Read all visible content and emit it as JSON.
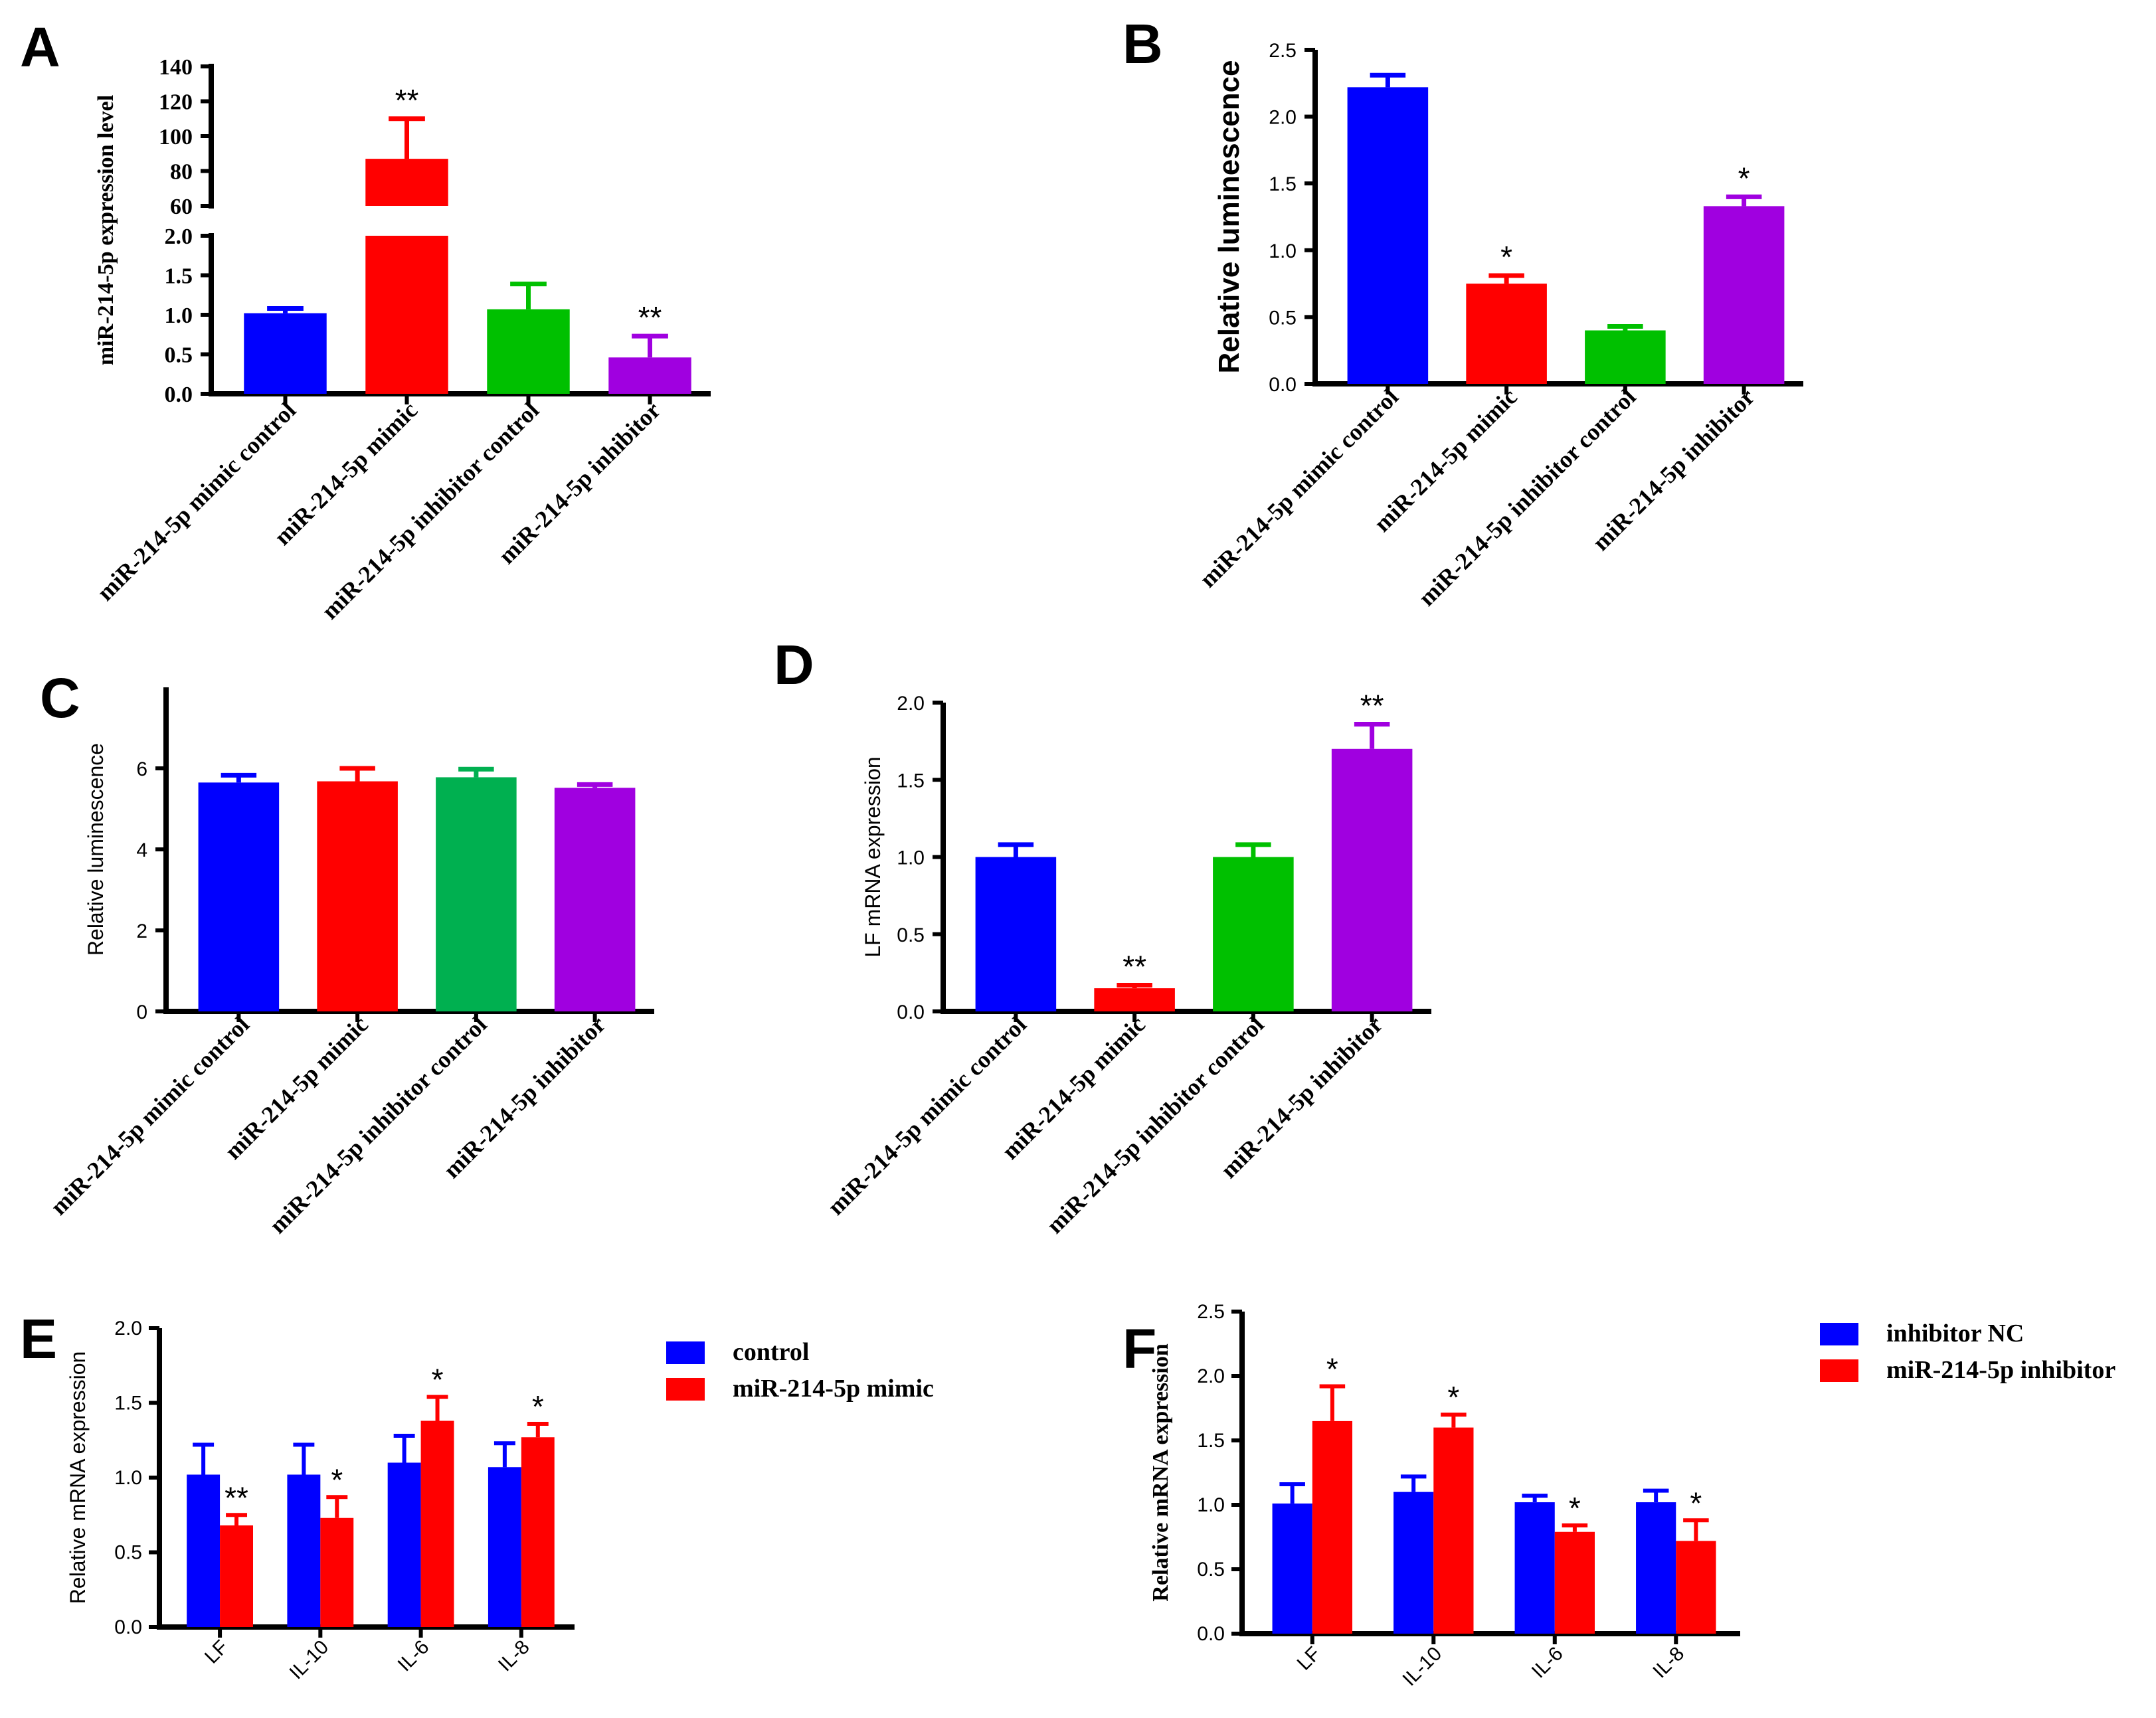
{
  "chart_data": [
    {
      "panel": "A",
      "type": "bar",
      "ylabel": "miR-214-5p expression level",
      "axis_break": {
        "lower_ylim": [
          0,
          2
        ],
        "upper_ylim": [
          60,
          140
        ]
      },
      "lower_ticks": [
        "0.0",
        "0.5",
        "1.0",
        "1.5",
        "2.0"
      ],
      "upper_ticks": [
        "60",
        "80",
        "100",
        "120",
        "140"
      ],
      "categories": [
        "miR-214-5p mimic control",
        "miR-214-5p mimic",
        "miR-214-5p inhibitor control",
        "miR-214-5p inhibitor"
      ],
      "values": [
        1.02,
        87,
        1.07,
        0.46
      ],
      "errors": [
        0.06,
        23,
        0.32,
        0.27
      ],
      "significance": [
        "",
        "**",
        "",
        "**"
      ],
      "colors": [
        "#0000ff",
        "#ff0000",
        "#00c000",
        "#a000e0"
      ]
    },
    {
      "panel": "B",
      "type": "bar",
      "ylabel": "Relative luminescence",
      "ylim": [
        0,
        2.5
      ],
      "ticks": [
        "0.0",
        "0.5",
        "1.0",
        "1.5",
        "2.0",
        "2.5"
      ],
      "categories": [
        "miR-214-5p mimic control",
        "miR-214-5p mimic",
        "miR-214-5p inhibitor control",
        "miR-214-5p inhibitor"
      ],
      "values": [
        2.22,
        0.75,
        0.4,
        1.33
      ],
      "errors": [
        0.09,
        0.06,
        0.03,
        0.07
      ],
      "significance": [
        "",
        "*",
        "",
        "*"
      ],
      "colors": [
        "#0000ff",
        "#ff0000",
        "#00c000",
        "#a000e0"
      ]
    },
    {
      "panel": "C",
      "type": "bar",
      "ylabel": "Relative luminescence",
      "ylim": [
        0,
        8
      ],
      "ticks": [
        "0",
        "2",
        "4",
        "6"
      ],
      "categories": [
        "miR-214-5p mimic control",
        "miR-214-5p mimic",
        "miR-214-5p inhibitor control",
        "miR-214-5p inhibitor"
      ],
      "values": [
        5.65,
        5.68,
        5.78,
        5.52
      ],
      "errors": [
        0.18,
        0.32,
        0.2,
        0.08
      ],
      "significance": [
        "",
        "",
        "",
        ""
      ],
      "colors": [
        "#0000ff",
        "#ff0000",
        "#00b050",
        "#a000e0"
      ]
    },
    {
      "panel": "D",
      "type": "bar",
      "ylabel": "LF mRNA expression",
      "ylim": [
        0,
        2.0
      ],
      "ticks": [
        "0.0",
        "0.5",
        "1.0",
        "1.5",
        "2.0"
      ],
      "categories": [
        "miR-214-5p mimic control",
        "miR-214-5p mimic",
        "miR-214-5p inhibitor control",
        "miR-214-5p inhibitor"
      ],
      "values": [
        1.0,
        0.15,
        1.0,
        1.7
      ],
      "errors": [
        0.08,
        0.02,
        0.08,
        0.16
      ],
      "significance": [
        "",
        "**",
        "",
        "**"
      ],
      "colors": [
        "#0000ff",
        "#ff0000",
        "#00c000",
        "#a000e0"
      ]
    },
    {
      "panel": "E",
      "type": "bar",
      "ylabel": "Relative mRNA expression",
      "ylim": [
        0,
        2.0
      ],
      "ticks": [
        "0.0",
        "0.5",
        "1.0",
        "1.5",
        "2.0"
      ],
      "categories": [
        "LF",
        "IL-10",
        "IL-6",
        "IL-8"
      ],
      "series": [
        {
          "name": "control",
          "color": "#0000ff",
          "values": [
            1.02,
            1.02,
            1.1,
            1.07
          ],
          "errors": [
            0.2,
            0.2,
            0.18,
            0.16
          ]
        },
        {
          "name": "miR-214-5p mimic",
          "color": "#ff0000",
          "values": [
            0.68,
            0.73,
            1.38,
            1.27
          ],
          "errors": [
            0.07,
            0.14,
            0.16,
            0.09
          ]
        }
      ],
      "significance": [
        "**",
        "*",
        "*",
        "*"
      ],
      "legend": "right"
    },
    {
      "panel": "F",
      "type": "bar",
      "ylabel": "Relative  mRNA expression",
      "ylim": [
        0,
        2.5
      ],
      "ticks": [
        "0.0",
        "0.5",
        "1.0",
        "1.5",
        "2.0",
        "2.5"
      ],
      "categories": [
        "LF",
        "IL-10",
        "IL-6",
        "IL-8"
      ],
      "series": [
        {
          "name": "inhibitor NC",
          "color": "#0000ff",
          "values": [
            1.01,
            1.1,
            1.02,
            1.02
          ],
          "errors": [
            0.15,
            0.12,
            0.05,
            0.09
          ]
        },
        {
          "name": "miR-214-5p inhibitor",
          "color": "#ff0000",
          "values": [
            1.65,
            1.6,
            0.79,
            0.72
          ],
          "errors": [
            0.27,
            0.1,
            0.05,
            0.16
          ]
        }
      ],
      "significance": [
        "*",
        "*",
        "*",
        "*"
      ],
      "legend": "right"
    }
  ]
}
